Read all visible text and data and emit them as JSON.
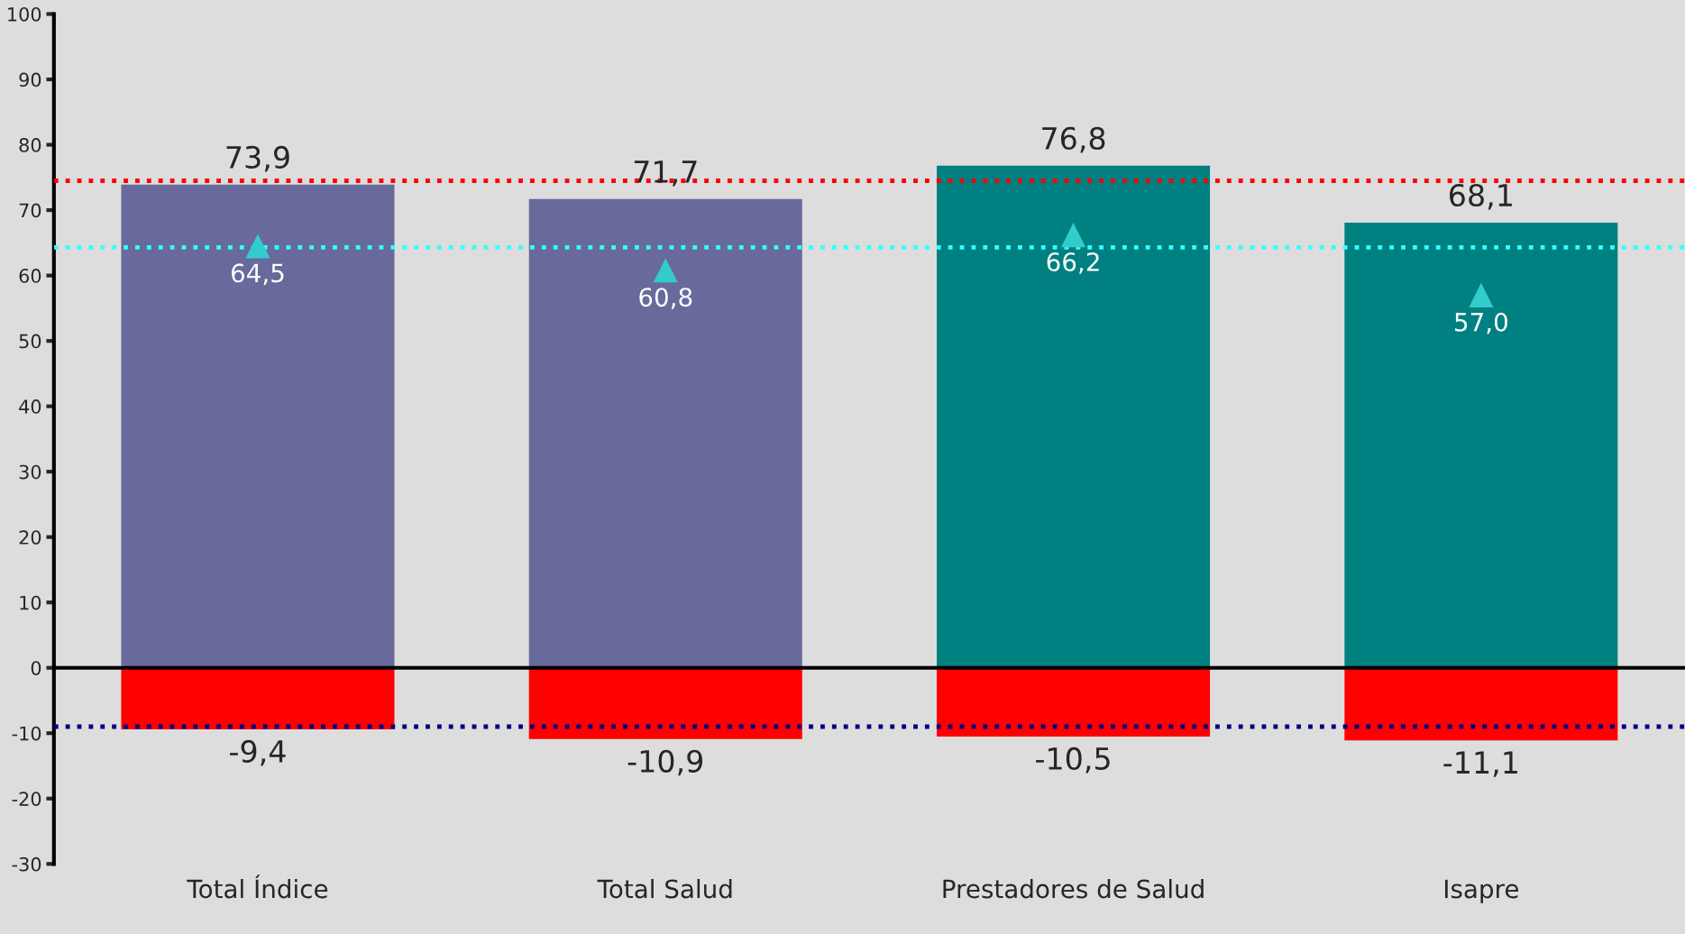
{
  "chart_data": {
    "type": "bar",
    "stacked": true,
    "categories": [
      "Total Índice",
      "Total Salud",
      "Prestadores de Salud",
      "Isapre"
    ],
    "series": [
      {
        "colors": [
          "#676a9a",
          "#676a9a",
          "#008080",
          "#008080"
        ],
        "values": [
          73.9,
          71.7,
          76.8,
          68.1
        ],
        "value_labels": [
          "73,9",
          "71,7",
          "76,8",
          "68,1"
        ]
      },
      {
        "color": "#ff0000",
        "values": [
          -9.4,
          -10.9,
          -10.5,
          -11.1
        ],
        "value_labels": [
          "-9,4",
          "-10,9",
          "-10,5",
          "-11,1"
        ]
      },
      {
        "type": "scatter",
        "color": "#33cccc",
        "marker": "triangle",
        "values": [
          64.5,
          60.8,
          66.2,
          57.0
        ],
        "value_labels": [
          "64,5",
          "60,8",
          "66,2",
          "57,0"
        ]
      }
    ],
    "ylim": [
      -30,
      100
    ],
    "yticks": [
      -30,
      -20,
      -10,
      0,
      10,
      20,
      30,
      40,
      50,
      60,
      70,
      80,
      90,
      100
    ],
    "ref_lines": [
      {
        "axis": "y",
        "value": 74.5,
        "color": "#ff0000",
        "line_style": "dotted"
      },
      {
        "axis": "y",
        "value": 64.3,
        "color": "#33ffff",
        "line_style": "dotted"
      },
      {
        "axis": "y",
        "value": -9,
        "color": "#000080",
        "line_style": "dotted"
      }
    ],
    "legend": false
  }
}
